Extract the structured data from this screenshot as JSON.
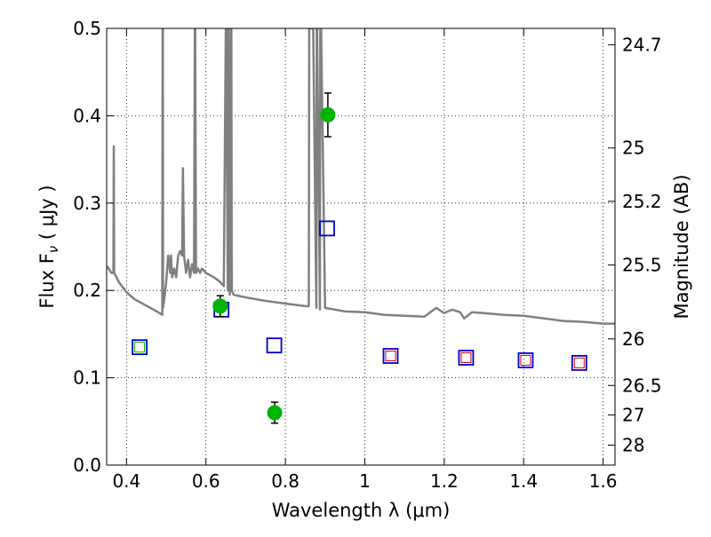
{
  "chart_data": {
    "type": "scatter",
    "xlabel": "Wavelength  λ (μm)",
    "ylabel": "Flux  F",
    "ylabel_sub": "ν",
    "ylabel_unit": "  ( μJy )",
    "y2label": "Magnitude (AB)",
    "xlim": [
      0.35,
      1.63
    ],
    "ylim": [
      0.0,
      0.5
    ],
    "grid": true,
    "x_ticks": [
      0.4,
      0.6,
      0.8,
      1.0,
      1.2,
      1.4,
      1.6
    ],
    "x_tick_labels": [
      "0.4",
      "0.6",
      "0.8",
      "1",
      "1.2",
      "1.4",
      "1.6"
    ],
    "y_ticks": [
      0.0,
      0.1,
      0.2,
      0.3,
      0.4,
      0.5
    ],
    "y_tick_labels": [
      "0.0",
      "0.1",
      "0.2",
      "0.3",
      "0.4",
      "0.5"
    ],
    "y2_tick_labels": [
      {
        "label": "24.7",
        "flux": 0.4813
      },
      {
        "label": "25",
        "flux": 0.3631
      },
      {
        "label": "25.2",
        "flux": 0.302
      },
      {
        "label": "25.5",
        "flux": 0.2291
      },
      {
        "label": "26",
        "flux": 0.1445
      },
      {
        "label": "26.5",
        "flux": 0.0912
      },
      {
        "label": "27",
        "flux": 0.0575
      },
      {
        "label": "28",
        "flux": 0.0229
      }
    ],
    "colors": {
      "template": "#808080",
      "observed": "#00b400",
      "model_blue": "#0000cc",
      "model_red": "#cc0000",
      "model_green": "#00aa00",
      "errorbar": "#000000"
    },
    "series": [
      {
        "kind": "template_spectrum",
        "x": [
          0.35,
          0.355,
          0.362,
          0.367,
          0.368,
          0.369,
          0.375,
          0.38,
          0.4,
          0.42,
          0.44,
          0.46,
          0.48,
          0.49,
          0.491,
          0.4915,
          0.492,
          0.495,
          0.5,
          0.505,
          0.51,
          0.512,
          0.515,
          0.52,
          0.525,
          0.53,
          0.535,
          0.54,
          0.542,
          0.545,
          0.55,
          0.555,
          0.56,
          0.565,
          0.57,
          0.572,
          0.573,
          0.575,
          0.58,
          0.585,
          0.59,
          0.6,
          0.62,
          0.635,
          0.645,
          0.65,
          0.651,
          0.655,
          0.656,
          0.657,
          0.66,
          0.663,
          0.664,
          0.665,
          0.67,
          0.7,
          0.75,
          0.8,
          0.85,
          0.859,
          0.86,
          0.87,
          0.878,
          0.879,
          0.88,
          0.887,
          0.888,
          0.89,
          0.9,
          0.95,
          1.0,
          1.05,
          1.1,
          1.15,
          1.18,
          1.2,
          1.22,
          1.24,
          1.25,
          1.27,
          1.3,
          1.35,
          1.4,
          1.45,
          1.5,
          1.55,
          1.6,
          1.63
        ],
        "y": [
          0.228,
          0.225,
          0.22,
          0.22,
          0.365,
          0.22,
          0.215,
          0.21,
          0.198,
          0.19,
          0.185,
          0.18,
          0.175,
          0.172,
          0.5,
          0.5,
          0.18,
          0.19,
          0.21,
          0.24,
          0.22,
          0.24,
          0.215,
          0.225,
          0.215,
          0.24,
          0.245,
          0.24,
          0.34,
          0.24,
          0.22,
          0.235,
          0.215,
          0.23,
          0.22,
          0.5,
          0.5,
          0.22,
          0.225,
          0.22,
          0.225,
          0.22,
          0.215,
          0.21,
          0.205,
          0.5,
          0.5,
          0.2,
          0.5,
          0.5,
          0.195,
          0.5,
          0.5,
          0.2,
          0.195,
          0.192,
          0.188,
          0.185,
          0.182,
          0.182,
          0.5,
          0.5,
          0.18,
          0.5,
          0.5,
          0.178,
          0.5,
          0.5,
          0.18,
          0.176,
          0.175,
          0.172,
          0.171,
          0.17,
          0.18,
          0.174,
          0.178,
          0.175,
          0.168,
          0.175,
          0.174,
          0.172,
          0.171,
          0.168,
          0.165,
          0.164,
          0.162,
          0.162
        ]
      },
      {
        "kind": "observed",
        "marker": "circle",
        "x": [
          0.636,
          0.773,
          0.907
        ],
        "y": [
          0.182,
          0.06,
          0.401
        ],
        "yerr": [
          0.012,
          0.012,
          0.025
        ]
      },
      {
        "kind": "model",
        "marker": "square",
        "points": [
          {
            "x": 0.433,
            "y": 0.135,
            "inner": "green"
          },
          {
            "x": 0.639,
            "y": 0.178,
            "inner": "none"
          },
          {
            "x": 0.772,
            "y": 0.137,
            "inner": "none"
          },
          {
            "x": 0.905,
            "y": 0.271,
            "inner": "none"
          },
          {
            "x": 1.065,
            "y": 0.125,
            "inner": "red"
          },
          {
            "x": 1.255,
            "y": 0.123,
            "inner": "red"
          },
          {
            "x": 1.405,
            "y": 0.12,
            "inner": "red"
          },
          {
            "x": 1.54,
            "y": 0.117,
            "inner": "red"
          }
        ]
      }
    ]
  }
}
